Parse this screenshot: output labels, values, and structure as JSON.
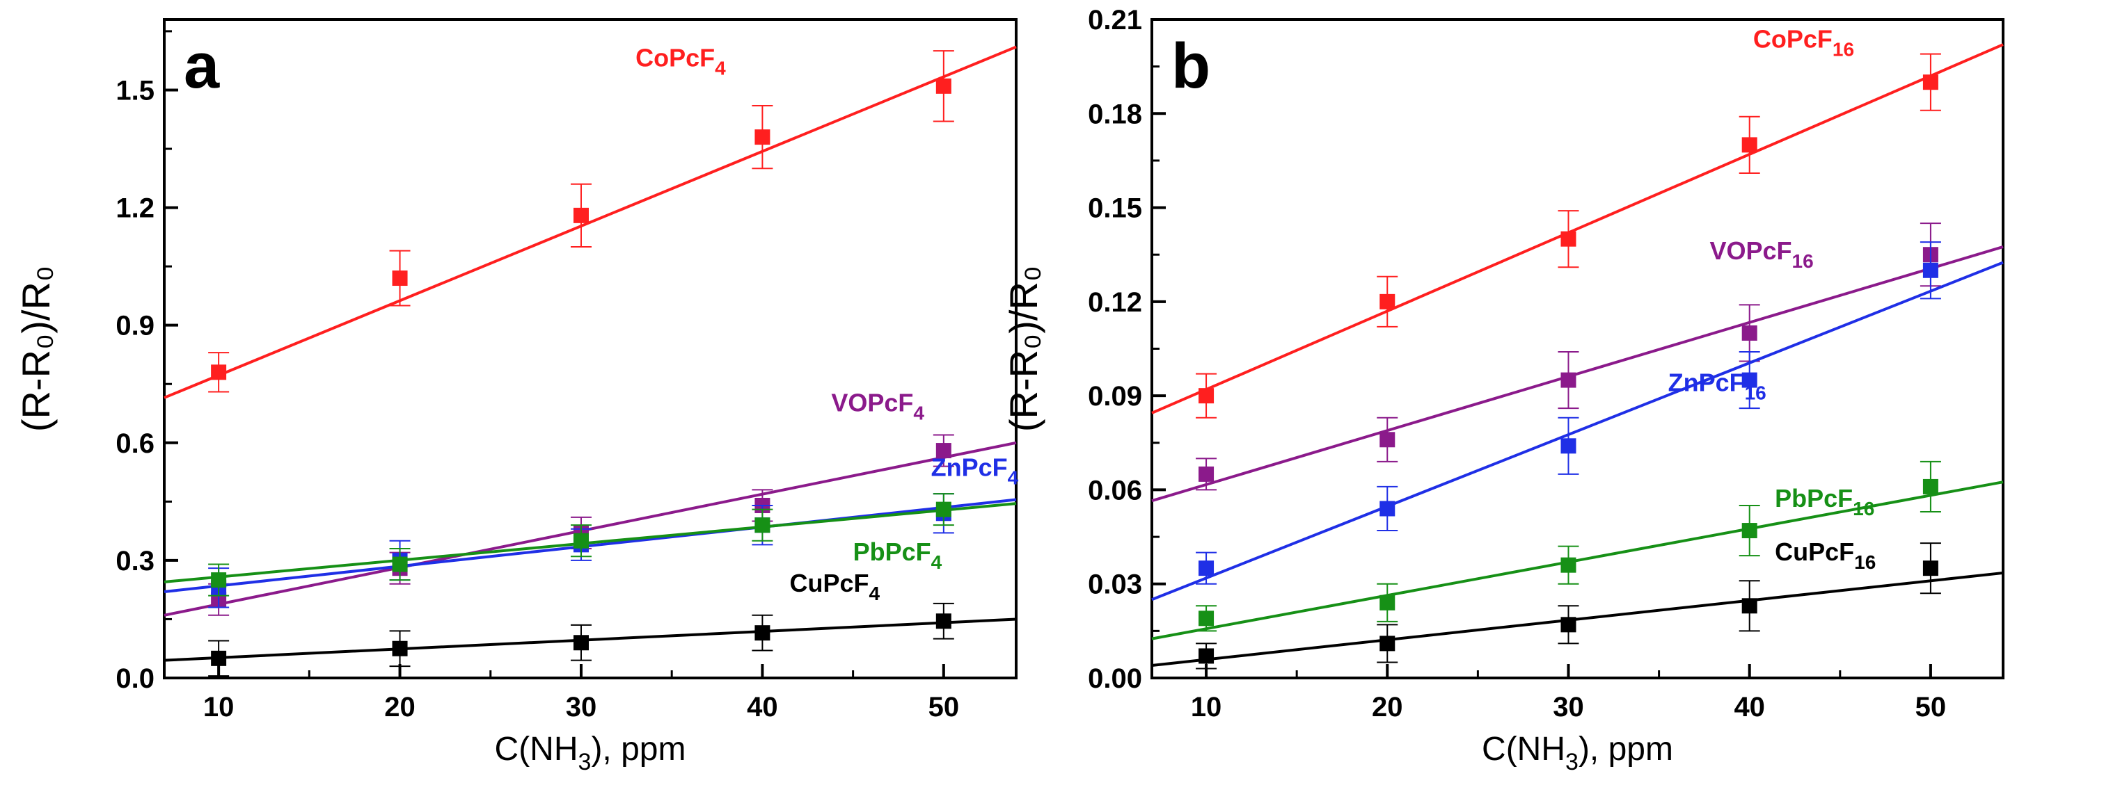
{
  "colors": {
    "CoPc": "#ff1f1f",
    "VOPc": "#8b1a8b",
    "ZnPc": "#1f2fe6",
    "PbPc": "#169016",
    "CuPc": "#000000",
    "axis": "#000000"
  },
  "chart_data": [
    {
      "type": "scatter",
      "panel_label": "a",
      "xlabel": {
        "main": "C(NH",
        "sub": "3",
        "tail": "), ppm"
      },
      "ylabel": "(R-R₀)/R₀",
      "xlim": [
        7,
        54
      ],
      "ylim": [
        0,
        1.68
      ],
      "xticks": [
        "10",
        "20",
        "30",
        "40",
        "50"
      ],
      "yticks": [
        "0.0",
        "0.3",
        "0.6",
        "0.9",
        "1.2",
        "1.5"
      ],
      "minor_xticks": [
        15,
        25,
        35,
        45
      ],
      "minor_yticks": [
        0.15,
        0.45,
        0.75,
        1.05,
        1.35,
        1.65
      ],
      "series": [
        {
          "name": "CoPcF4",
          "base": "CoPcF",
          "sub": "4",
          "color_key": "CoPc",
          "x": [
            10,
            20,
            30,
            40,
            50
          ],
          "y": [
            0.78,
            1.02,
            1.18,
            1.38,
            1.51
          ],
          "err": [
            0.05,
            0.07,
            0.08,
            0.08,
            0.09
          ],
          "fit": {
            "x": [
              7,
              54
            ],
            "y": [
              0.715,
              1.61
            ]
          },
          "label_at": {
            "x": 33,
            "y": 1.56
          }
        },
        {
          "name": "VOPcF4",
          "base": "VOPcF",
          "sub": "4",
          "color_key": "VOPc",
          "x": [
            10,
            20,
            30,
            40,
            50
          ],
          "y": [
            0.2,
            0.28,
            0.37,
            0.44,
            0.58
          ],
          "err": [
            0.04,
            0.04,
            0.04,
            0.04,
            0.04
          ],
          "fit": {
            "x": [
              7,
              54
            ],
            "y": [
              0.16,
              0.6
            ]
          },
          "label_at": {
            "x": 43.8,
            "y": 0.68
          }
        },
        {
          "name": "ZnPcF4",
          "base": "ZnPcF",
          "sub": "4",
          "color_key": "ZnPc",
          "x": [
            10,
            20,
            30,
            40,
            50
          ],
          "y": [
            0.23,
            0.3,
            0.34,
            0.39,
            0.42
          ],
          "err": [
            0.05,
            0.05,
            0.04,
            0.05,
            0.05
          ],
          "fit": {
            "x": [
              7,
              54
            ],
            "y": [
              0.22,
              0.455
            ]
          },
          "label_at": {
            "x": 49.3,
            "y": 0.515
          }
        },
        {
          "name": "PbPcF4",
          "base": "PbPcF",
          "sub": "4",
          "color_key": "PbPc",
          "x": [
            10,
            20,
            30,
            40,
            50
          ],
          "y": [
            0.25,
            0.29,
            0.35,
            0.39,
            0.43
          ],
          "err": [
            0.04,
            0.04,
            0.04,
            0.04,
            0.04
          ],
          "fit": {
            "x": [
              7,
              54
            ],
            "y": [
              0.245,
              0.445
            ]
          },
          "label_at": {
            "x": 45,
            "y": 0.3
          }
        },
        {
          "name": "CuPcF4",
          "base": "CuPcF",
          "sub": "4",
          "color_key": "CuPc",
          "x": [
            10,
            20,
            30,
            40,
            50
          ],
          "y": [
            0.05,
            0.075,
            0.09,
            0.115,
            0.145
          ],
          "err": [
            0.045,
            0.045,
            0.045,
            0.045,
            0.045
          ],
          "fit": {
            "x": [
              7,
              54
            ],
            "y": [
              0.045,
              0.15
            ]
          },
          "label_at": {
            "x": 41.5,
            "y": 0.22
          }
        }
      ]
    },
    {
      "type": "scatter",
      "panel_label": "b",
      "xlabel": {
        "main": "C(NH",
        "sub": "3",
        "tail": "), ppm"
      },
      "ylabel": "(R-R₀)/R₀",
      "xlim": [
        7,
        54
      ],
      "ylim": [
        0,
        0.21
      ],
      "xticks": [
        "10",
        "20",
        "30",
        "40",
        "50"
      ],
      "yticks": [
        "0.00",
        "0.03",
        "0.06",
        "0.09",
        "0.12",
        "0.15",
        "0.18",
        "0.21"
      ],
      "minor_xticks": [
        15,
        25,
        35,
        45
      ],
      "minor_yticks": [
        0.015,
        0.045,
        0.075,
        0.105,
        0.135,
        0.165,
        0.195
      ],
      "series": [
        {
          "name": "CoPcF16",
          "base": "CoPcF",
          "sub": "16",
          "color_key": "CoPc",
          "x": [
            10,
            20,
            30,
            40,
            50
          ],
          "y": [
            0.09,
            0.12,
            0.14,
            0.17,
            0.19
          ],
          "err": [
            0.007,
            0.008,
            0.009,
            0.009,
            0.009
          ],
          "fit": {
            "x": [
              7,
              54
            ],
            "y": [
              0.0845,
              0.202
            ]
          },
          "label_at": {
            "x": 40.2,
            "y": 0.201
          }
        },
        {
          "name": "VOPcF16",
          "base": "VOPcF",
          "sub": "16",
          "color_key": "VOPc",
          "x": [
            10,
            20,
            30,
            40,
            50
          ],
          "y": [
            0.065,
            0.076,
            0.095,
            0.11,
            0.135
          ],
          "err": [
            0.005,
            0.007,
            0.009,
            0.009,
            0.01
          ],
          "fit": {
            "x": [
              7,
              54
            ],
            "y": [
              0.0565,
              0.1375
            ]
          },
          "label_at": {
            "x": 37.8,
            "y": 0.1335
          }
        },
        {
          "name": "ZnPcF16",
          "base": "ZnPcF",
          "sub": "16",
          "color_key": "ZnPc",
          "x": [
            10,
            20,
            30,
            40,
            50
          ],
          "y": [
            0.035,
            0.054,
            0.074,
            0.095,
            0.13
          ],
          "err": [
            0.005,
            0.007,
            0.009,
            0.009,
            0.009
          ],
          "fit": {
            "x": [
              7,
              54
            ],
            "y": [
              0.025,
              0.1325
            ]
          },
          "label_at": {
            "x": 35.5,
            "y": 0.0915
          }
        },
        {
          "name": "PbPcF16",
          "base": "PbPcF",
          "sub": "16",
          "color_key": "PbPc",
          "x": [
            10,
            20,
            30,
            40,
            50
          ],
          "y": [
            0.019,
            0.024,
            0.036,
            0.047,
            0.061
          ],
          "err": [
            0.004,
            0.006,
            0.006,
            0.008,
            0.008
          ],
          "fit": {
            "x": [
              7,
              54
            ],
            "y": [
              0.0125,
              0.0625
            ]
          },
          "label_at": {
            "x": 41.4,
            "y": 0.0545
          }
        },
        {
          "name": "CuPcF16",
          "base": "CuPcF",
          "sub": "16",
          "color_key": "CuPc",
          "x": [
            10,
            20,
            30,
            40,
            50
          ],
          "y": [
            0.007,
            0.011,
            0.017,
            0.023,
            0.035
          ],
          "err": [
            0.004,
            0.006,
            0.006,
            0.008,
            0.008
          ],
          "fit": {
            "x": [
              7,
              54
            ],
            "y": [
              0.004,
              0.0335
            ]
          },
          "label_at": {
            "x": 41.4,
            "y": 0.0375
          }
        }
      ]
    }
  ]
}
